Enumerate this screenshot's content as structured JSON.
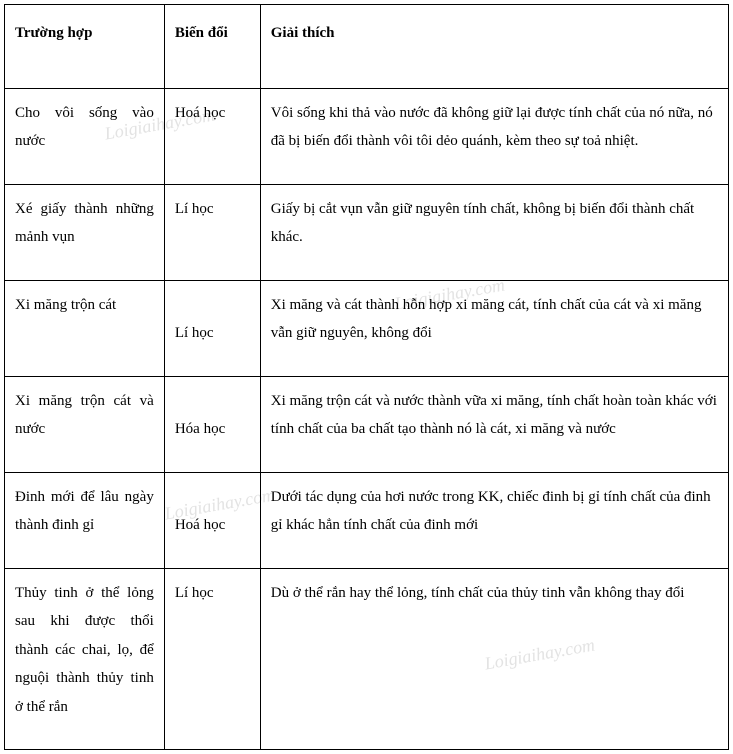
{
  "table": {
    "headers": {
      "col1": "Trường hợp",
      "col2": "Biến đổi",
      "col3": "Giải thích"
    },
    "rows": [
      {
        "case": "Cho vôi sống vào nước",
        "change": "Hoá học",
        "explanation": "Vôi sống khi thả vào nước đã không giữ lại được tính chất của nó nữa, nó đã bị biến đổi thành vôi tôi dẻo quánh, kèm theo sự toả nhiệt.",
        "col2_align": "top"
      },
      {
        "case": "Xé giấy thành những mảnh vụn",
        "change": "Lí học",
        "explanation": "Giấy bị cắt vụn vẫn giữ nguyên tính chất, không bị biến đổi thành chất khác.",
        "col2_align": "top"
      },
      {
        "case": "Xi măng trộn cát",
        "change": "Lí học",
        "explanation": "Xi măng và cát thành hỗn hợp xi măng cát, tính chất của cát và xi măng vẫn giữ nguyên, không đổi",
        "col2_align": "bottom"
      },
      {
        "case": "Xi măng trộn cát và nước",
        "change": "Hóa học",
        "explanation": "Xi măng trộn cát và  nước thành vữa xi măng, tính chất hoàn toàn khác với tính chất của ba chất tạo thành nó là cát, xi măng và nước",
        "col2_align": "bottom"
      },
      {
        "case": "Đinh mới để lâu ngày thành đinh gỉ",
        "change": "Hoá học",
        "explanation": "Dưới tác dụng của hơi nước trong KK, chiếc đinh bị gỉ tính chất của đinh gỉ khác hẳn tính chất của đinh mới",
        "col2_align": "bottom"
      },
      {
        "case": "Thủy tinh ở thể lỏng sau khi được thổi thành các chai, lọ, để nguội thành thủy tinh ở thể rắn",
        "change": "Lí học",
        "explanation": "Dù ở thể rắn hay thể lỏng, tính chất của thủy tinh vẫn không thay đổi",
        "col2_align": "top"
      }
    ]
  },
  "watermark": "Loigiaihay.com"
}
